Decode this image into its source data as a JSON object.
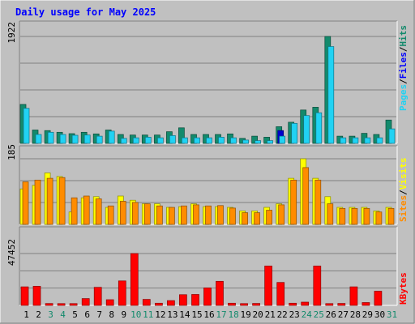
{
  "chart_data": {
    "title": "Daily usage for May 2025",
    "type": "bar",
    "x": [
      "1",
      "2",
      "3",
      "4",
      "5",
      "6",
      "7",
      "8",
      "9",
      "10",
      "11",
      "12",
      "13",
      "14",
      "15",
      "16",
      "17",
      "18",
      "19",
      "20",
      "21",
      "22",
      "23",
      "24",
      "25",
      "26",
      "27",
      "28",
      "29",
      "30",
      "31"
    ],
    "weekend_days": [
      "3",
      "4",
      "10",
      "11",
      "17",
      "18",
      "24",
      "25",
      "31"
    ],
    "panels": [
      {
        "name": "hits_files_pages",
        "ymax": 1922,
        "ymax_label": "1922",
        "legend": [
          "Pages",
          "/",
          "Files",
          "/",
          "Hits"
        ],
        "series": [
          {
            "name": "Hits",
            "color": "#138a6c",
            "values": [
              700,
              240,
              230,
              200,
              175,
              200,
              170,
              240,
              160,
              150,
              150,
              150,
              210,
              280,
              160,
              160,
              160,
              170,
              90,
              130,
              110,
              300,
              380,
              600,
              650,
              1922,
              130,
              130,
              180,
              160,
              420
            ]
          },
          {
            "name": "Files",
            "color": "#0000cc",
            "values": [
              0,
              0,
              0,
              0,
              0,
              0,
              0,
              0,
              0,
              0,
              0,
              0,
              0,
              0,
              0,
              0,
              0,
              0,
              0,
              0,
              0,
              230,
              0,
              0,
              0,
              0,
              0,
              0,
              0,
              0,
              0
            ]
          },
          {
            "name": "Pages",
            "color": "#21d2f3",
            "values": [
              630,
              160,
              200,
              160,
              145,
              150,
              130,
              220,
              90,
              100,
              110,
              100,
              140,
              100,
              100,
              100,
              110,
              100,
              60,
              50,
              50,
              130,
              360,
              500,
              550,
              1740,
              100,
              100,
              100,
              100,
              260
            ]
          }
        ]
      },
      {
        "name": "visits_sites",
        "ymax": 185,
        "ymax_label": "185",
        "legend": [
          "Sites",
          "/",
          "Visits"
        ],
        "series": [
          {
            "name": "Visits",
            "color": "#ffff00",
            "values": [
              100,
              110,
              145,
              135,
              35,
              75,
              78,
              48,
              80,
              68,
              58,
              58,
              48,
              50,
              58,
              50,
              50,
              48,
              38,
              38,
              48,
              58,
              130,
              185,
              130,
              78,
              48,
              48,
              48,
              38,
              48
            ]
          },
          {
            "name": "Sites",
            "color": "#ff8c00",
            "values": [
              120,
              125,
              130,
              132,
              75,
              80,
              72,
              52,
              65,
              62,
              58,
              52,
              48,
              52,
              55,
              52,
              53,
              46,
              33,
              33,
              40,
              55,
              125,
              160,
              125,
              58,
              45,
              45,
              45,
              35,
              45
            ]
          }
        ]
      },
      {
        "name": "kbytes",
        "ymax": 47452,
        "ymax_label": "47452",
        "legend": [
          "KBytes"
        ],
        "series": [
          {
            "name": "KBytes",
            "color": "#ff0000",
            "values": [
              17000,
              17500,
              1700,
              1600,
              1600,
              6200,
              16500,
              5200,
              22400,
              47452,
              5500,
              2000,
              4400,
              9800,
              10000,
              16000,
              22000,
              2000,
              1600,
              1800,
              36000,
              21000,
              2000,
              3000,
              36000,
              1600,
              1800,
              17000,
              2600,
              13000,
              0
            ]
          }
        ]
      }
    ]
  }
}
